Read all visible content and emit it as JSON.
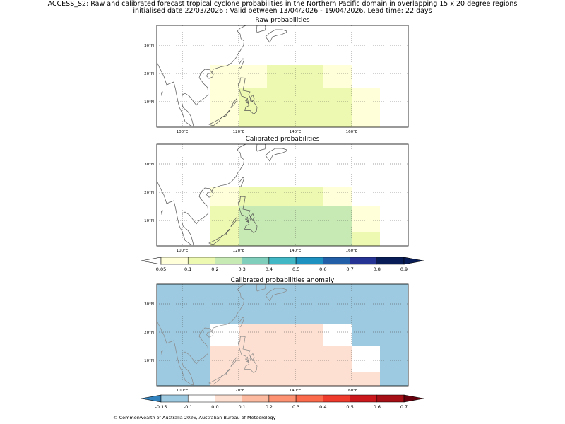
{
  "title_line1": "ACCESS_S2: Raw and calibrated forecast tropical cyclone probabilities in the Northern Pacific domain in overlapping 15 x 20 degree regions",
  "title_line2": "initialised date 22/03/2026 :  Valid between 13/04/2026 - 19/04/2026. Lead time: 22 days",
  "panels": {
    "raw": {
      "title": "Raw probabilities"
    },
    "cal": {
      "title": "Calibrated probabilities"
    },
    "anom": {
      "title": "Calibrated probabilities anomaly"
    }
  },
  "axes": {
    "lon_ticks": [
      "100°E",
      "120°E",
      "140°E",
      "160°E"
    ],
    "lat_ticks": [
      "10°N",
      "20°N",
      "30°N"
    ]
  },
  "map_extent": {
    "lon": [
      91,
      180
    ],
    "lat": [
      1,
      37
    ]
  },
  "regions": {
    "raw": [
      {
        "lon": [
          110,
          130
        ],
        "lat": [
          0,
          15
        ],
        "value": 0.05
      },
      {
        "lon": [
          110,
          130
        ],
        "lat": [
          15,
          23
        ],
        "value": 0.05
      },
      {
        "lon": [
          130,
          150
        ],
        "lat": [
          15,
          23
        ],
        "value": 0.1
      },
      {
        "lon": [
          150,
          160
        ],
        "lat": [
          15,
          23
        ],
        "value": 0.05
      },
      {
        "lon": [
          130,
          160
        ],
        "lat": [
          0,
          15
        ],
        "value": 0.1
      },
      {
        "lon": [
          120,
          130
        ],
        "lat": [
          0,
          15
        ],
        "value": 0.1
      },
      {
        "lon": [
          160,
          170
        ],
        "lat": [
          0,
          15
        ],
        "value": 0.05
      }
    ],
    "cal": [
      {
        "lon": [
          110,
          120
        ],
        "lat": [
          15,
          22
        ],
        "value": 0.05
      },
      {
        "lon": [
          120,
          150
        ],
        "lat": [
          15,
          22
        ],
        "value": 0.1
      },
      {
        "lon": [
          150,
          160
        ],
        "lat": [
          15,
          22
        ],
        "value": 0.05
      },
      {
        "lon": [
          110,
          120
        ],
        "lat": [
          0,
          15
        ],
        "value": 0.1
      },
      {
        "lon": [
          120,
          160
        ],
        "lat": [
          0,
          15
        ],
        "value": 0.2
      },
      {
        "lon": [
          160,
          170
        ],
        "lat": [
          6,
          15
        ],
        "value": 0.05
      },
      {
        "lon": [
          160,
          170
        ],
        "lat": [
          0,
          6
        ],
        "value": 0.1
      }
    ],
    "anom": [
      {
        "lon": [
          91,
          180
        ],
        "lat": [
          0,
          37
        ],
        "value": -0.15
      },
      {
        "lon": [
          110,
          120
        ],
        "lat": [
          15,
          23
        ],
        "value": -0.1
      },
      {
        "lon": [
          120,
          150
        ],
        "lat": [
          15,
          23
        ],
        "value": 0.0
      },
      {
        "lon": [
          150,
          160
        ],
        "lat": [
          15,
          23
        ],
        "value": -0.1
      },
      {
        "lon": [
          110,
          120
        ],
        "lat": [
          0,
          15
        ],
        "value": 0.0
      },
      {
        "lon": [
          120,
          160
        ],
        "lat": [
          0,
          15
        ],
        "value": 0.05
      },
      {
        "lon": [
          160,
          170
        ],
        "lat": [
          6,
          15
        ],
        "value": -0.1
      },
      {
        "lon": [
          160,
          170
        ],
        "lat": [
          0,
          6
        ],
        "value": 0.0
      }
    ]
  },
  "colorbar_prob": {
    "labels": [
      "0.05",
      "0.1",
      "0.2",
      "0.3",
      "0.4",
      "0.5",
      "0.6",
      "0.7",
      "0.8",
      "0.9"
    ],
    "colors": [
      "#ffffd9",
      "#edf8b1",
      "#c7e9b4",
      "#7fcdbb",
      "#41b6c4",
      "#1d91c0",
      "#225ea8",
      "#253494",
      "#081d58"
    ],
    "under": "#ffffff",
    "over": "#081d58"
  },
  "colorbar_anom": {
    "labels": [
      "-0.15",
      "-0.1",
      "0.0",
      "0.1",
      "0.2",
      "0.3",
      "0.4",
      "0.5",
      "0.6",
      "0.7"
    ],
    "colors": [
      "#9ecae1",
      "#ffffff",
      "#fee0d2",
      "#fcbba1",
      "#fc9272",
      "#fb6a4a",
      "#ef3b2c",
      "#cb181d",
      "#a50f15"
    ],
    "under": "#3182bd",
    "over": "#67000d"
  },
  "footer": "© Commonwealth of Australia 2026, Australian Bureau of Meteorology"
}
